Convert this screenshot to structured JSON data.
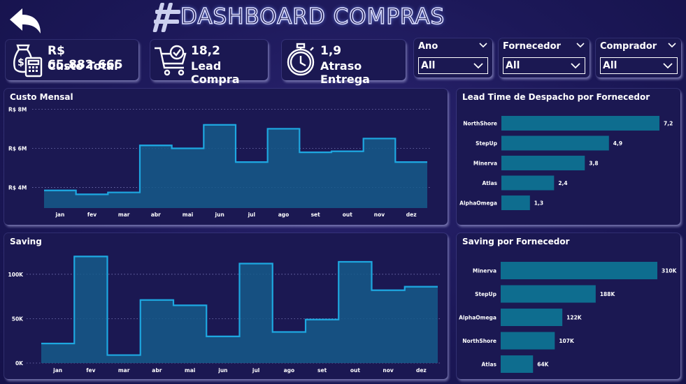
{
  "header": {
    "title": "DASHBOARD COMPRAS",
    "back_icon": "back-arrow-icon",
    "logo_icon": "hashtag-logo-icon"
  },
  "kpis": [
    {
      "value": "R$ 65.882.665",
      "label": "Custo Total",
      "icon": "money-calculator-icon"
    },
    {
      "value": "18,2",
      "label": "Lead Compra",
      "icon": "shopping-cart-check-icon"
    },
    {
      "value": "1,9",
      "label": "Atraso Entrega",
      "icon": "stopwatch-icon"
    }
  ],
  "filters": [
    {
      "label": "Ano",
      "value": "All"
    },
    {
      "label": "Fornecedor",
      "value": "All"
    },
    {
      "label": "Comprador",
      "value": "All"
    }
  ],
  "colors": {
    "background": "#1c1858",
    "card": "#1b1852",
    "line": "#1ea7e0",
    "area": "#155a8a",
    "bar": "#0e6d8f"
  },
  "panels": {
    "custo_mensal": "Custo Mensal",
    "saving": "Saving",
    "lead_time": "Lead Time de Despacho por Fornecedor",
    "saving_fornecedor": "Saving por Fornecedor"
  },
  "chart_data": [
    {
      "id": "custo_mensal",
      "type": "area",
      "title": "Custo Mensal",
      "step": true,
      "categories": [
        "jan",
        "fev",
        "mar",
        "abr",
        "mai",
        "jun",
        "jul",
        "ago",
        "set",
        "out",
        "nov",
        "dez"
      ],
      "values": [
        3.85,
        3.65,
        3.75,
        6.15,
        6.0,
        7.2,
        5.3,
        7.0,
        5.8,
        5.85,
        6.5,
        5.3
      ],
      "yticks": [
        4,
        6,
        8
      ],
      "ytick_labels": [
        "R$ 4M",
        "R$ 6M",
        "R$ 8M"
      ],
      "ylim": [
        2.95,
        8.05
      ]
    },
    {
      "id": "saving",
      "type": "area",
      "title": "Saving",
      "step": true,
      "categories": [
        "jan",
        "fev",
        "mar",
        "abr",
        "mai",
        "jun",
        "jul",
        "ago",
        "set",
        "out",
        "nov",
        "dez"
      ],
      "values": [
        22,
        120,
        9,
        71,
        65,
        30,
        112,
        35,
        49,
        114,
        82,
        86
      ],
      "yticks": [
        0,
        50,
        100
      ],
      "ytick_labels": [
        "0K",
        "50K",
        "100K"
      ],
      "ylim": [
        0,
        125
      ]
    },
    {
      "id": "lead_time",
      "type": "bar",
      "orientation": "horizontal",
      "title": "Lead Time de Despacho por Fornecedor",
      "categories": [
        "NorthShore",
        "StepUp",
        "Minerva",
        "Atlas",
        "AlphaOmega"
      ],
      "values": [
        7.2,
        4.9,
        3.8,
        2.4,
        1.3
      ],
      "value_labels": [
        "7,2",
        "4,9",
        "3,8",
        "2,4",
        "1,3"
      ],
      "xlim": [
        0,
        7.2
      ]
    },
    {
      "id": "saving_fornecedor",
      "type": "bar",
      "orientation": "horizontal",
      "title": "Saving por Fornecedor",
      "categories": [
        "Minerva",
        "StepUp",
        "AlphaOmega",
        "NorthShore",
        "Atlas"
      ],
      "values": [
        310,
        188,
        122,
        107,
        64
      ],
      "value_labels": [
        "310K",
        "188K",
        "122K",
        "107K",
        "64K"
      ],
      "xlim": [
        0,
        310
      ]
    }
  ]
}
